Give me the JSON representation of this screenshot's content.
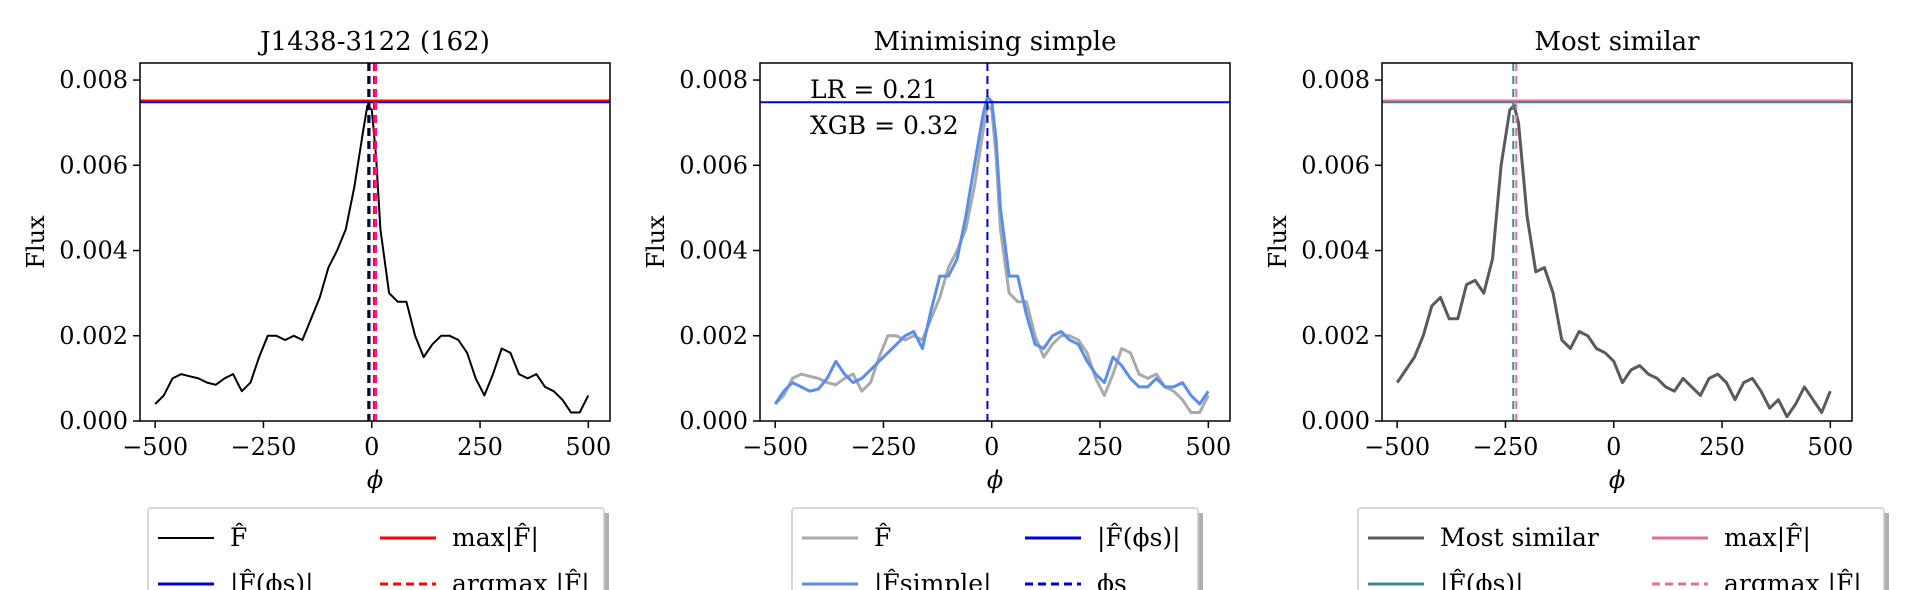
{
  "figure_domain": "Chart",
  "chart_data": [
    {
      "type": "line",
      "title": "J1438-3122 (162)",
      "xlabel": "ϕ",
      "ylabel": "Flux",
      "xlim": [
        -535,
        550
      ],
      "ylim": [
        0,
        0.0084
      ],
      "xticks": [
        -500,
        -250,
        0,
        250,
        500
      ],
      "xtick_labels": [
        "−500",
        "−250",
        "0",
        "250",
        "500"
      ],
      "yticks": [
        0,
        0.002,
        0.004,
        0.006,
        0.008
      ],
      "ytick_labels": [
        "0.000",
        "0.002",
        "0.004",
        "0.006",
        "0.008"
      ],
      "grid": false,
      "legend_placement": "below",
      "annotations": [],
      "series": [
        {
          "name": "F̂",
          "color": "#000000",
          "style": "solid",
          "x": [
            -500,
            -480,
            -460,
            -440,
            -420,
            -400,
            -380,
            -360,
            -340,
            -320,
            -300,
            -280,
            -260,
            -240,
            -220,
            -200,
            -180,
            -160,
            -140,
            -120,
            -100,
            -80,
            -60,
            -40,
            -20,
            -10,
            0,
            10,
            20,
            40,
            60,
            80,
            100,
            120,
            140,
            160,
            180,
            200,
            220,
            240,
            260,
            280,
            300,
            320,
            340,
            360,
            380,
            400,
            420,
            440,
            460,
            480,
            500
          ],
          "y": [
            0.0004,
            0.0006,
            0.001,
            0.0011,
            0.00105,
            0.001,
            0.0009,
            0.00085,
            0.001,
            0.0011,
            0.0007,
            0.0009,
            0.0015,
            0.002,
            0.002,
            0.0019,
            0.002,
            0.0019,
            0.0024,
            0.0029,
            0.0036,
            0.004,
            0.0045,
            0.0055,
            0.0068,
            0.0074,
            0.0073,
            0.0062,
            0.0045,
            0.003,
            0.0028,
            0.0028,
            0.002,
            0.0015,
            0.0018,
            0.002,
            0.002,
            0.0019,
            0.0016,
            0.001,
            0.0006,
            0.0011,
            0.0017,
            0.0016,
            0.0011,
            0.001,
            0.0011,
            0.0008,
            0.0007,
            0.0005,
            0.0002,
            0.0002,
            0.0006
          ]
        },
        {
          "name": "max|F̂|",
          "kind": "hline",
          "value": 0.00752,
          "color": "#ff0000",
          "style": "solid"
        },
        {
          "name": "|F̂(ϕs)|",
          "kind": "hline",
          "value": 0.00748,
          "color": "#0000cc",
          "style": "solid"
        },
        {
          "name": "argmax |F̂|",
          "kind": "vline",
          "value": 5,
          "color": "#ff0000",
          "style": "dashed"
        },
        {
          "name": "ϕs",
          "kind": "vline",
          "value": -5,
          "color": "#0000cc",
          "style": "dashed"
        },
        {
          "name": "",
          "kind": "vline",
          "value": -8,
          "color": "#000000",
          "style": "dashed"
        },
        {
          "name": "",
          "kind": "vline",
          "value": 10,
          "color": "#ff00cc",
          "style": "dashed"
        }
      ],
      "legend": [
        {
          "label": "F̂",
          "color": "#000000",
          "style": "solid"
        },
        {
          "label": "max|F̂|",
          "color": "#ff0000",
          "style": "solid"
        },
        {
          "label": "|F̂(ϕs)|",
          "color": "#0000cc",
          "style": "solid"
        },
        {
          "label": "argmax |F̂|",
          "color": "#ff0000",
          "style": "dashed"
        }
      ]
    },
    {
      "type": "line",
      "title": "Minimising simple",
      "xlabel": "ϕ",
      "ylabel": "Flux",
      "xlim": [
        -535,
        550
      ],
      "ylim": [
        0,
        0.0084
      ],
      "xticks": [
        -500,
        -250,
        0,
        250,
        500
      ],
      "xtick_labels": [
        "−500",
        "−250",
        "0",
        "250",
        "500"
      ],
      "yticks": [
        0,
        0.002,
        0.004,
        0.006,
        0.008
      ],
      "ytick_labels": [
        "0.000",
        "0.002",
        "0.004",
        "0.006",
        "0.008"
      ],
      "grid": false,
      "legend_placement": "below",
      "annotations": [
        {
          "text": "LR = 0.21"
        },
        {
          "text": "XGB = 0.32"
        }
      ],
      "series": [
        {
          "name": "F̂",
          "color": "#aaaaaa",
          "style": "solid",
          "x": [
            -500,
            -480,
            -460,
            -440,
            -420,
            -400,
            -380,
            -360,
            -340,
            -320,
            -300,
            -280,
            -260,
            -240,
            -220,
            -200,
            -180,
            -160,
            -140,
            -120,
            -100,
            -80,
            -60,
            -40,
            -20,
            -10,
            0,
            10,
            20,
            40,
            60,
            80,
            100,
            120,
            140,
            160,
            180,
            200,
            220,
            240,
            260,
            280,
            300,
            320,
            340,
            360,
            380,
            400,
            420,
            440,
            460,
            480,
            500
          ],
          "y": [
            0.0004,
            0.0006,
            0.001,
            0.0011,
            0.00105,
            0.001,
            0.0009,
            0.00085,
            0.001,
            0.0011,
            0.0007,
            0.0009,
            0.0015,
            0.002,
            0.002,
            0.0019,
            0.002,
            0.0019,
            0.0024,
            0.0029,
            0.0036,
            0.004,
            0.0045,
            0.0055,
            0.0068,
            0.0074,
            0.0073,
            0.0062,
            0.0045,
            0.003,
            0.0028,
            0.0028,
            0.002,
            0.0015,
            0.0018,
            0.002,
            0.002,
            0.0019,
            0.0016,
            0.001,
            0.0006,
            0.0011,
            0.0017,
            0.0016,
            0.0011,
            0.001,
            0.0011,
            0.0008,
            0.0007,
            0.0005,
            0.0002,
            0.0002,
            0.0006
          ]
        },
        {
          "name": "|F̂simple|",
          "color": "#5b8ee6",
          "style": "solid",
          "x": [
            -500,
            -480,
            -460,
            -440,
            -420,
            -400,
            -380,
            -360,
            -340,
            -320,
            -300,
            -280,
            -260,
            -240,
            -220,
            -200,
            -180,
            -160,
            -140,
            -120,
            -100,
            -80,
            -60,
            -40,
            -20,
            -10,
            0,
            10,
            20,
            40,
            60,
            80,
            100,
            120,
            140,
            160,
            180,
            200,
            220,
            240,
            260,
            280,
            300,
            320,
            340,
            360,
            380,
            400,
            420,
            440,
            460,
            480,
            500
          ],
          "y": [
            0.0004,
            0.0007,
            0.0009,
            0.0008,
            0.0007,
            0.00075,
            0.001,
            0.0014,
            0.0011,
            0.0009,
            0.001,
            0.0012,
            0.0014,
            0.0016,
            0.0018,
            0.002,
            0.0021,
            0.0017,
            0.0026,
            0.0034,
            0.0034,
            0.0038,
            0.0048,
            0.006,
            0.0072,
            0.0076,
            0.0075,
            0.0066,
            0.005,
            0.0034,
            0.0034,
            0.0025,
            0.0018,
            0.0017,
            0.002,
            0.0021,
            0.0019,
            0.0018,
            0.0014,
            0.0011,
            0.0009,
            0.0015,
            0.0013,
            0.001,
            0.0008,
            0.0008,
            0.001,
            0.0008,
            0.0008,
            0.0009,
            0.0006,
            0.0004,
            0.0007
          ]
        },
        {
          "name": "|F̂(ϕs)|",
          "kind": "hline",
          "value": 0.00748,
          "color": "#0000cc",
          "style": "solid"
        },
        {
          "name": "ϕs",
          "kind": "vline",
          "value": -10,
          "color": "#0000cc",
          "style": "dashed"
        }
      ],
      "legend": [
        {
          "label": "F̂",
          "color": "#aaaaaa",
          "style": "solid"
        },
        {
          "label": "|F̂(ϕs)|",
          "color": "#0000cc",
          "style": "solid"
        },
        {
          "label": "|F̂simple|",
          "color": "#5b8ee6",
          "style": "solid"
        },
        {
          "label": "ϕs",
          "color": "#0000cc",
          "style": "dashed"
        }
      ]
    },
    {
      "type": "line",
      "title": "Most similar",
      "xlabel": "ϕ",
      "ylabel": "Flux",
      "xlim": [
        -535,
        550
      ],
      "ylim": [
        0,
        0.0084
      ],
      "xticks": [
        -500,
        -250,
        0,
        250,
        500
      ],
      "xtick_labels": [
        "−500",
        "−250",
        "0",
        "250",
        "500"
      ],
      "yticks": [
        0,
        0.002,
        0.004,
        0.006,
        0.008
      ],
      "ytick_labels": [
        "0.000",
        "0.002",
        "0.004",
        "0.006",
        "0.008"
      ],
      "grid": false,
      "legend_placement": "below",
      "annotations": [],
      "series": [
        {
          "name": "Most similar",
          "color": "#5a5a5a",
          "style": "solid",
          "x": [
            -500,
            -480,
            -460,
            -440,
            -420,
            -400,
            -380,
            -360,
            -340,
            -320,
            -300,
            -280,
            -260,
            -240,
            -230,
            -220,
            -200,
            -180,
            -160,
            -140,
            -120,
            -100,
            -80,
            -60,
            -40,
            -20,
            0,
            20,
            40,
            60,
            80,
            100,
            120,
            140,
            160,
            180,
            200,
            220,
            240,
            260,
            280,
            300,
            320,
            340,
            360,
            380,
            400,
            420,
            440,
            460,
            480,
            500
          ],
          "y": [
            0.0009,
            0.0012,
            0.0015,
            0.002,
            0.0027,
            0.0029,
            0.0024,
            0.0024,
            0.0032,
            0.0033,
            0.003,
            0.0038,
            0.006,
            0.0073,
            0.0074,
            0.007,
            0.0048,
            0.0035,
            0.0036,
            0.003,
            0.0019,
            0.0017,
            0.0021,
            0.002,
            0.0017,
            0.0016,
            0.0014,
            0.0009,
            0.0012,
            0.0013,
            0.0011,
            0.001,
            0.0008,
            0.0007,
            0.001,
            0.0008,
            0.0006,
            0.001,
            0.0011,
            0.0009,
            0.0005,
            0.0009,
            0.001,
            0.0007,
            0.0003,
            0.0005,
            0.0001,
            0.0004,
            0.0008,
            0.0005,
            0.0002,
            0.0007
          ]
        },
        {
          "name": "max|F̂|",
          "kind": "hline",
          "value": 0.00752,
          "color": "#e0709a",
          "style": "solid"
        },
        {
          "name": "|F̂(ϕs)|",
          "kind": "hline",
          "value": 0.00748,
          "color": "#3d8a8a",
          "style": "solid"
        },
        {
          "name": "argmax |F̂|",
          "kind": "vline",
          "value": -225,
          "color": "#e0709a",
          "style": "dashed"
        },
        {
          "name": "",
          "kind": "vline",
          "value": -232,
          "color": "#3d8a8a",
          "style": "dashed"
        }
      ],
      "legend": [
        {
          "label": "Most similar",
          "color": "#5a5a5a",
          "style": "solid"
        },
        {
          "label": "max|F̂|",
          "color": "#e0709a",
          "style": "solid"
        },
        {
          "label": "|F̂(ϕs)|",
          "color": "#3d8a8a",
          "style": "solid"
        },
        {
          "label": "argmax |F̂|",
          "color": "#e0709a",
          "style": "dashed"
        }
      ]
    }
  ]
}
